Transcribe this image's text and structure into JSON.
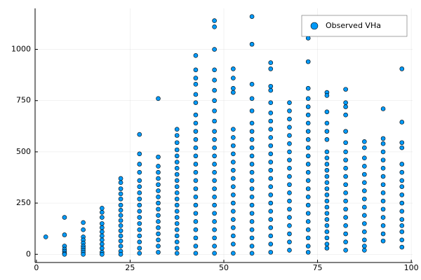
{
  "chart_data": {
    "type": "scatter",
    "xlim": [
      -0.35,
      100.35
    ],
    "xticks": [
      0,
      25,
      50,
      75,
      100
    ],
    "ylim": [
      -40,
      1200
    ],
    "yticks": [
      0,
      250,
      500,
      750,
      1000
    ],
    "grid": true,
    "legend": "top-right",
    "series": [
      {
        "name": "Observed VHa",
        "color": "#009af9",
        "x": [
          2.5,
          7.5,
          7.5,
          7.5,
          7.5,
          7.5,
          7.5,
          7.5,
          12.5,
          12.5,
          12.5,
          12.5,
          12.5,
          12.5,
          12.5,
          12.5,
          12.5,
          12.5,
          17.5,
          17.5,
          17.5,
          17.5,
          17.5,
          17.5,
          17.5,
          17.5,
          17.5,
          17.5,
          17.5,
          17.5,
          22.5,
          22.5,
          22.5,
          22.5,
          22.5,
          22.5,
          22.5,
          22.5,
          22.5,
          22.5,
          22.5,
          22.5,
          22.5,
          22.5,
          22.5,
          22.5,
          27.5,
          27.5,
          27.5,
          27.5,
          27.5,
          27.5,
          27.5,
          27.5,
          27.5,
          27.5,
          27.5,
          27.5,
          27.5,
          27.5,
          27.5,
          27.5,
          27.5,
          32.5,
          32.5,
          32.5,
          32.5,
          32.5,
          32.5,
          32.5,
          32.5,
          32.5,
          32.5,
          32.5,
          32.5,
          32.5,
          32.5,
          32.5,
          32.5,
          32.5,
          37.5,
          37.5,
          37.5,
          37.5,
          37.5,
          37.5,
          37.5,
          37.5,
          37.5,
          37.5,
          37.5,
          37.5,
          37.5,
          37.5,
          37.5,
          37.5,
          37.5,
          37.5,
          37.5,
          37.5,
          37.5,
          42.5,
          42.5,
          42.5,
          42.5,
          42.5,
          42.5,
          42.5,
          42.5,
          42.5,
          42.5,
          42.5,
          42.5,
          42.5,
          42.5,
          42.5,
          42.5,
          42.5,
          42.5,
          42.5,
          42.5,
          42.5,
          42.5,
          42.5,
          42.5,
          47.5,
          47.5,
          47.5,
          47.5,
          47.5,
          47.5,
          47.5,
          47.5,
          47.5,
          47.5,
          47.5,
          47.5,
          47.5,
          47.5,
          47.5,
          47.5,
          47.5,
          47.5,
          47.5,
          47.5,
          47.5,
          47.5,
          47.5,
          47.5,
          47.5,
          52.5,
          52.5,
          52.5,
          52.5,
          52.5,
          52.5,
          52.5,
          52.5,
          52.5,
          52.5,
          52.5,
          52.5,
          52.5,
          52.5,
          52.5,
          52.5,
          52.5,
          52.5,
          52.5,
          52.5,
          57.5,
          57.5,
          57.5,
          57.5,
          57.5,
          57.5,
          57.5,
          57.5,
          57.5,
          57.5,
          57.5,
          57.5,
          57.5,
          57.5,
          57.5,
          57.5,
          57.5,
          57.5,
          57.5,
          57.5,
          57.5,
          57.5,
          62.5,
          62.5,
          62.5,
          62.5,
          62.5,
          62.5,
          62.5,
          62.5,
          62.5,
          62.5,
          62.5,
          62.5,
          62.5,
          62.5,
          62.5,
          62.5,
          62.5,
          62.5,
          62.5,
          62.5,
          62.5,
          62.5,
          62.5,
          67.5,
          67.5,
          67.5,
          67.5,
          67.5,
          67.5,
          67.5,
          67.5,
          67.5,
          67.5,
          67.5,
          67.5,
          67.5,
          67.5,
          67.5,
          67.5,
          67.5,
          67.5,
          67.5,
          72.5,
          72.5,
          72.5,
          72.5,
          72.5,
          72.5,
          72.5,
          72.5,
          72.5,
          72.5,
          72.5,
          72.5,
          72.5,
          72.5,
          72.5,
          72.5,
          72.5,
          72.5,
          72.5,
          72.5,
          72.5,
          72.5,
          72.5,
          77.5,
          77.5,
          77.5,
          77.5,
          77.5,
          77.5,
          77.5,
          77.5,
          77.5,
          77.5,
          77.5,
          77.5,
          77.5,
          77.5,
          77.5,
          77.5,
          77.5,
          77.5,
          77.5,
          77.5,
          77.5,
          77.5,
          77.5,
          82.5,
          82.5,
          82.5,
          82.5,
          82.5,
          82.5,
          82.5,
          82.5,
          82.5,
          82.5,
          82.5,
          82.5,
          82.5,
          82.5,
          82.5,
          82.5,
          82.5,
          82.5,
          82.5,
          87.5,
          87.5,
          87.5,
          87.5,
          87.5,
          87.5,
          87.5,
          87.5,
          87.5,
          87.5,
          87.5,
          87.5,
          87.5,
          87.5,
          87.5,
          92.5,
          92.5,
          92.5,
          92.5,
          92.5,
          92.5,
          92.5,
          92.5,
          92.5,
          92.5,
          92.5,
          92.5,
          92.5,
          92.5,
          92.5,
          97.5,
          97.5,
          97.5,
          97.5,
          97.5,
          97.5,
          97.5,
          97.5,
          97.5,
          97.5,
          97.5,
          97.5,
          97.5,
          97.5,
          97.5,
          97.5
        ],
        "values": [
          85,
          180,
          95,
          40,
          25,
          15,
          5,
          0,
          155,
          120,
          85,
          70,
          55,
          40,
          30,
          20,
          10,
          0,
          225,
          205,
          180,
          150,
          130,
          110,
          90,
          70,
          50,
          30,
          10,
          0,
          370,
          350,
          320,
          295,
          270,
          240,
          215,
          190,
          165,
          140,
          115,
          90,
          65,
          40,
          15,
          0,
          585,
          490,
          440,
          400,
          360,
          330,
          300,
          270,
          240,
          210,
          180,
          150,
          120,
          90,
          60,
          30,
          5,
          760,
          475,
          430,
          400,
          370,
          340,
          310,
          280,
          250,
          220,
          190,
          160,
          130,
          100,
          70,
          40,
          10,
          610,
          580,
          545,
          510,
          480,
          450,
          420,
          390,
          360,
          330,
          300,
          270,
          240,
          210,
          180,
          150,
          120,
          90,
          60,
          30,
          5,
          970,
          900,
          860,
          830,
          780,
          740,
          680,
          640,
          600,
          560,
          520,
          480,
          440,
          400,
          360,
          320,
          280,
          240,
          200,
          160,
          120,
          80,
          40,
          5,
          1140,
          1110,
          1000,
          900,
          850,
          800,
          750,
          700,
          650,
          600,
          560,
          520,
          480,
          440,
          400,
          360,
          320,
          280,
          240,
          200,
          160,
          120,
          80,
          40,
          5,
          905,
          860,
          810,
          790,
          610,
          570,
          530,
          490,
          450,
          410,
          370,
          330,
          290,
          250,
          210,
          170,
          130,
          90,
          50,
          5,
          1160,
          1025,
          830,
          760,
          700,
          640,
          600,
          560,
          520,
          480,
          440,
          400,
          360,
          320,
          280,
          240,
          200,
          160,
          120,
          80,
          40,
          5,
          935,
          905,
          820,
          800,
          740,
          690,
          650,
          610,
          570,
          530,
          490,
          450,
          410,
          370,
          330,
          290,
          250,
          210,
          170,
          130,
          90,
          50,
          10,
          740,
          700,
          660,
          620,
          580,
          540,
          500,
          460,
          420,
          380,
          340,
          300,
          260,
          220,
          180,
          140,
          100,
          60,
          20,
          1055,
          940,
          810,
          760,
          720,
          680,
          640,
          600,
          560,
          520,
          480,
          440,
          400,
          360,
          320,
          280,
          240,
          200,
          160,
          120,
          80,
          40,
          10,
          790,
          775,
          695,
          640,
          600,
          560,
          500,
          470,
          440,
          410,
          380,
          350,
          320,
          290,
          260,
          230,
          200,
          170,
          140,
          110,
          80,
          50,
          30,
          805,
          740,
          720,
          680,
          600,
          545,
          500,
          460,
          420,
          380,
          340,
          300,
          260,
          220,
          180,
          140,
          100,
          60,
          20,
          550,
          520,
          470,
          430,
          390,
          350,
          310,
          270,
          230,
          190,
          150,
          110,
          70,
          40,
          20,
          710,
          565,
          540,
          500,
          460,
          420,
          380,
          340,
          300,
          260,
          220,
          180,
          140,
          100,
          65,
          905,
          645,
          545,
          520,
          440,
          400,
          360,
          330,
          290,
          250,
          210,
          170,
          140,
          110,
          70,
          35
        ]
      }
    ]
  }
}
